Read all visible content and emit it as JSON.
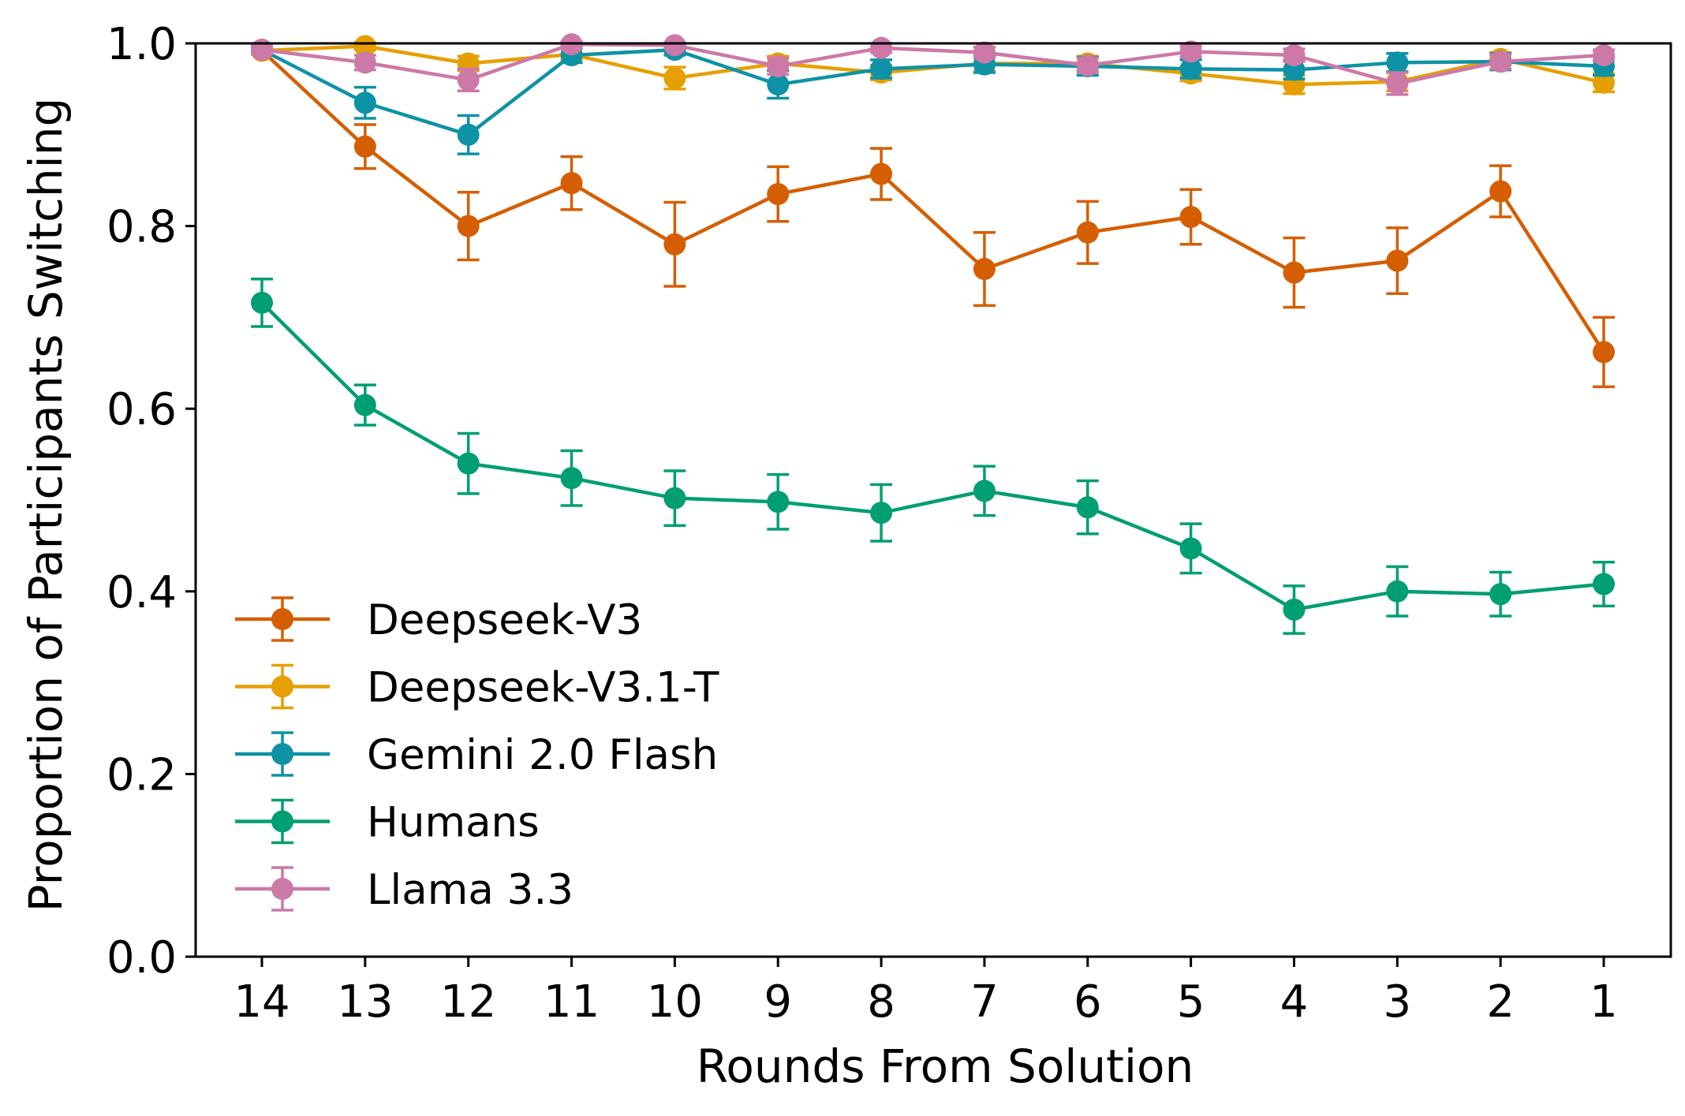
{
  "chart_data": {
    "type": "line",
    "title": "",
    "xlabel": "Rounds From Solution",
    "ylabel": "Proportion of Participants Switching",
    "ylim": [
      0,
      1.0
    ],
    "yticks": [
      "0.0",
      "0.2",
      "0.4",
      "0.6",
      "0.8",
      "1.0"
    ],
    "categories": [
      "14",
      "13",
      "12",
      "11",
      "10",
      "9",
      "8",
      "7",
      "6",
      "5",
      "4",
      "3",
      "2",
      "1"
    ],
    "legend_position": "lower-left",
    "grid": false,
    "error_bars": true,
    "series": [
      {
        "name": "Deepseek-V3",
        "color": "#d55e00",
        "values": [
          0.992,
          0.887,
          0.8,
          0.847,
          0.78,
          0.835,
          0.857,
          0.753,
          0.793,
          0.81,
          0.749,
          0.762,
          0.838,
          0.662
        ],
        "errors": [
          0.004,
          0.024,
          0.037,
          0.029,
          0.046,
          0.03,
          0.028,
          0.04,
          0.034,
          0.03,
          0.038,
          0.036,
          0.028,
          0.038
        ]
      },
      {
        "name": "Deepseek-V3.1-T",
        "color": "#e69f00",
        "values": [
          0.992,
          0.997,
          0.978,
          0.988,
          0.962,
          0.978,
          0.968,
          0.978,
          0.978,
          0.967,
          0.955,
          0.958,
          0.983,
          0.957
        ],
        "errors": [
          0.004,
          0.004,
          0.008,
          0.006,
          0.012,
          0.008,
          0.008,
          0.008,
          0.008,
          0.008,
          0.01,
          0.01,
          0.007,
          0.01
        ]
      },
      {
        "name": "Gemini 2.0 Flash",
        "color": "#0e92a6",
        "values": [
          0.993,
          0.935,
          0.9,
          0.987,
          0.993,
          0.955,
          0.972,
          0.977,
          0.975,
          0.972,
          0.971,
          0.979,
          0.98,
          0.975
        ],
        "errors": [
          0.004,
          0.017,
          0.021,
          0.008,
          0.006,
          0.015,
          0.01,
          0.009,
          0.01,
          0.01,
          0.01,
          0.01,
          0.009,
          0.01
        ]
      },
      {
        "name": "Humans",
        "color": "#009e73",
        "values": [
          0.716,
          0.604,
          0.54,
          0.524,
          0.502,
          0.498,
          0.486,
          0.51,
          0.492,
          0.447,
          0.38,
          0.4,
          0.397,
          0.408
        ],
        "errors": [
          0.026,
          0.022,
          0.033,
          0.03,
          0.03,
          0.03,
          0.031,
          0.027,
          0.029,
          0.027,
          0.026,
          0.027,
          0.024,
          0.024
        ]
      },
      {
        "name": "Llama 3.3",
        "color": "#cc79a7",
        "values": [
          0.993,
          0.979,
          0.96,
          0.999,
          0.998,
          0.975,
          0.995,
          0.99,
          0.976,
          0.991,
          0.987,
          0.956,
          0.98,
          0.987
        ],
        "errors": [
          0.004,
          0.008,
          0.012,
          0.003,
          0.003,
          0.009,
          0.005,
          0.006,
          0.008,
          0.006,
          0.007,
          0.012,
          0.008,
          0.006
        ]
      }
    ]
  }
}
